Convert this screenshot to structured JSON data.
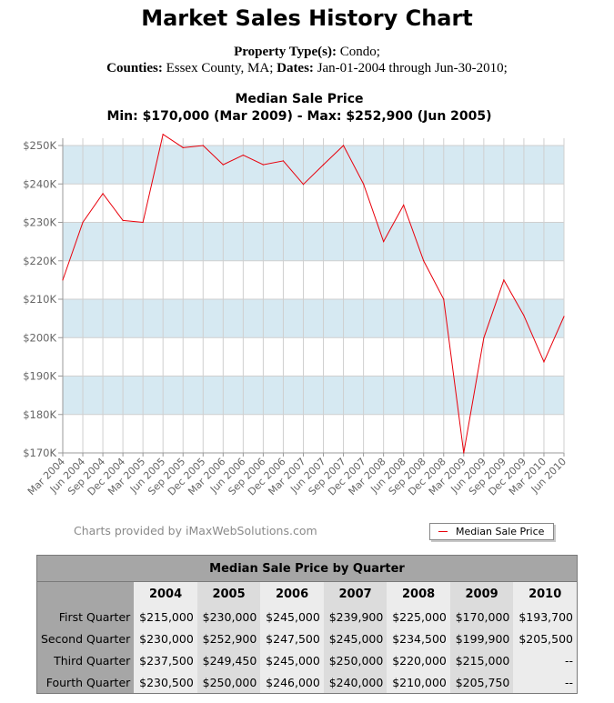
{
  "header": {
    "title": "Market Sales History Chart",
    "line1_label": "Property Type(s):",
    "line1_value": "Condo;",
    "line2_counties_label": "Counties:",
    "line2_counties_value": "Essex County, MA;",
    "line2_dates_label": "Dates:",
    "line2_dates_value": "Jan-01-2004 through Jun-30-2010;"
  },
  "chart_data": {
    "type": "line",
    "title": "Median Sale Price",
    "subtitle": "Min: $170,000 (Mar 2009) - Max: $252,900 (Jun 2005)",
    "x": [
      "Mar 2004",
      "Jun 2004",
      "Sep 2004",
      "Dec 2004",
      "Mar 2005",
      "Jun 2005",
      "Sep 2005",
      "Dec 2005",
      "Mar 2006",
      "Jun 2006",
      "Sep 2006",
      "Dec 2006",
      "Mar 2007",
      "Jun 2007",
      "Sep 2007",
      "Dec 2007",
      "Mar 2008",
      "Jun 2008",
      "Sep 2008",
      "Dec 2008",
      "Mar 2009",
      "Jun 2009",
      "Sep 2009",
      "Dec 2009",
      "Mar 2010",
      "Jun 2010"
    ],
    "series": [
      {
        "name": "Median Sale Price",
        "color": "#e8000b",
        "values": [
          215000,
          230000,
          237500,
          230500,
          230000,
          252900,
          249450,
          250000,
          245000,
          247500,
          245000,
          246000,
          239900,
          245000,
          250000,
          240000,
          225000,
          234500,
          220000,
          210000,
          170000,
          199900,
          215000,
          205750,
          193700,
          205500
        ]
      }
    ],
    "y_ticks": [
      "$170K",
      "$180K",
      "$190K",
      "$200K",
      "$210K",
      "$220K",
      "$230K",
      "$240K",
      "$250K"
    ],
    "ylim": [
      170000,
      250000
    ],
    "grid": true,
    "band_color": "#d6e9f2",
    "legend_placement": "bottom-right"
  },
  "credit": "Charts provided by iMaxWebSolutions.com",
  "legend": {
    "label": "Median Sale Price"
  },
  "table": {
    "caption": "Median Sale Price by Quarter",
    "years": [
      "2004",
      "2005",
      "2006",
      "2007",
      "2008",
      "2009",
      "2010"
    ],
    "rows": [
      {
        "label": "First Quarter",
        "cells": [
          "$215,000",
          "$230,000",
          "$245,000",
          "$239,900",
          "$225,000",
          "$170,000",
          "$193,700"
        ]
      },
      {
        "label": "Second Quarter",
        "cells": [
          "$230,000",
          "$252,900",
          "$247,500",
          "$245,000",
          "$234,500",
          "$199,900",
          "$205,500"
        ]
      },
      {
        "label": "Third Quarter",
        "cells": [
          "$237,500",
          "$249,450",
          "$245,000",
          "$250,000",
          "$220,000",
          "$215,000",
          "--"
        ]
      },
      {
        "label": "Fourth Quarter",
        "cells": [
          "$230,500",
          "$250,000",
          "$246,000",
          "$240,000",
          "$210,000",
          "$205,750",
          "--"
        ]
      }
    ]
  }
}
